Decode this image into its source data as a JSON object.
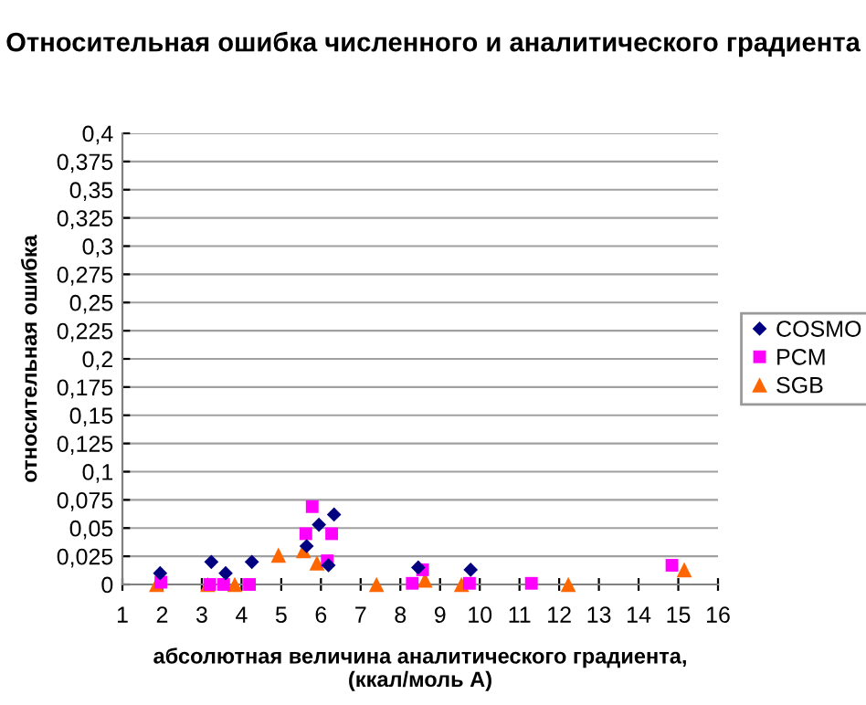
{
  "chart_data": {
    "type": "scatter",
    "title": "Относительная ошибка численного и аналитического градиента",
    "xlabel": "абсолютная величина аналитического градиента,\n(ккал/моль А)",
    "ylabel": "относительная ошибка",
    "xlim": [
      1,
      16
    ],
    "xticks": [
      1,
      2,
      3,
      4,
      5,
      6,
      7,
      8,
      9,
      10,
      11,
      12,
      13,
      14,
      15,
      16
    ],
    "ylim": [
      0,
      0.4
    ],
    "yticks": [
      {
        "value": 0,
        "label": "0"
      },
      {
        "value": 0.025,
        "label": "0,025"
      },
      {
        "value": 0.05,
        "label": "0,05"
      },
      {
        "value": 0.075,
        "label": "0,075"
      },
      {
        "value": 0.1,
        "label": "0,1"
      },
      {
        "value": 0.125,
        "label": "0,125"
      },
      {
        "value": 0.15,
        "label": "0,15"
      },
      {
        "value": 0.175,
        "label": "0,175"
      },
      {
        "value": 0.2,
        "label": "0,2"
      },
      {
        "value": 0.225,
        "label": "0,225"
      },
      {
        "value": 0.25,
        "label": "0,25"
      },
      {
        "value": 0.275,
        "label": "0,275"
      },
      {
        "value": 0.3,
        "label": "0,3"
      },
      {
        "value": 0.325,
        "label": "0,325"
      },
      {
        "value": 0.35,
        "label": "0,35"
      },
      {
        "value": 0.375,
        "label": "0,375"
      },
      {
        "value": 0.4,
        "label": "0,4"
      }
    ],
    "grid": "y",
    "legend": "right",
    "series": [
      {
        "name": "COSMO",
        "color": "#000080",
        "marker": "diamond",
        "x": [
          1.95,
          3.24,
          3.6,
          4.26,
          5.64,
          5.95,
          6.33,
          6.19,
          8.45,
          9.77
        ],
        "values": [
          0.01,
          0.02,
          0.01,
          0.02,
          0.034,
          0.053,
          0.062,
          0.017,
          0.015,
          0.013
        ]
      },
      {
        "name": "PCM",
        "color": "#ff00ff",
        "marker": "square",
        "x": [
          1.97,
          3.2,
          3.55,
          4.2,
          5.78,
          5.62,
          6.27,
          6.16,
          8.3,
          8.56,
          9.74,
          11.3,
          14.84
        ],
        "values": [
          0.002,
          0,
          0,
          0,
          0.069,
          0.045,
          0.045,
          0.021,
          0.001,
          0.013,
          0.001,
          0.001,
          0.017
        ]
      },
      {
        "name": "SGB",
        "color": "#ff6600",
        "marker": "triangle",
        "x": [
          1.86,
          3.15,
          3.83,
          4.93,
          5.56,
          5.9,
          7.4,
          8.62,
          9.54,
          12.23,
          15.15
        ],
        "values": [
          0,
          0,
          0,
          0.026,
          0.03,
          0.019,
          0,
          0.004,
          0,
          0,
          0.013
        ]
      }
    ]
  }
}
